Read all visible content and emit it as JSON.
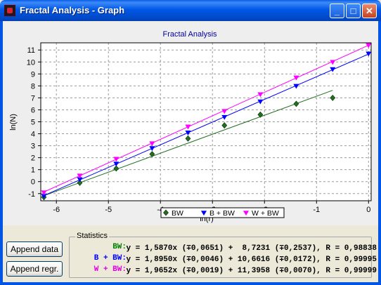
{
  "window": {
    "title": "Fractal Analysis - Graph",
    "minimize_glyph": "_",
    "maximize_glyph": "□",
    "close_glyph": "✕"
  },
  "buttons": {
    "append_data": "Append data",
    "append_regr": "Append regr."
  },
  "stats": {
    "legend": "Statistics",
    "rows": [
      {
        "label": "BW:",
        "text": "y = 1,5870x (∓0,0651) +  8,7231 (∓0,2537), R = 0,98838",
        "color": "#008000"
      },
      {
        "label": "B + BW:",
        "text": "y = 1,8950x (∓0,0046) + 10,6616 (∓0,0172), R = 0,99995",
        "color": "#0000FF"
      },
      {
        "label": "W + BW:",
        "text": "y = 1,9652x (∓0,0019) + 11,3958 (∓0,0070), R = 0,99999",
        "color": "#E000E0"
      }
    ]
  },
  "chart_data": {
    "type": "scatter",
    "title": "Fractal Analysis",
    "xlabel": "ln(r)",
    "ylabel": "ln(N)",
    "xlim": [
      -6.3,
      0.05
    ],
    "ylim": [
      -1.6,
      11.6
    ],
    "xticks": [
      -6,
      -5,
      -4,
      -3,
      -2,
      -1,
      0
    ],
    "yticks": [
      -1,
      0,
      1,
      2,
      3,
      4,
      5,
      6,
      7,
      8,
      9,
      10,
      11
    ],
    "grid": true,
    "legend_position": "bottom",
    "series": [
      {
        "name": "BW",
        "color": "#207020",
        "marker": "diamond",
        "x": [
          -6.24,
          -5.55,
          -4.85,
          -4.16,
          -3.47,
          -2.77,
          -2.08,
          -1.39,
          -0.69
        ],
        "y": [
          -1.3,
          -0.1,
          1.1,
          2.3,
          3.6,
          4.7,
          5.6,
          6.5,
          7.0
        ],
        "fit": {
          "slope": 1.587,
          "intercept": 8.7231,
          "x_range": [
            -6.24,
            -0.69
          ]
        }
      },
      {
        "name": "B + BW",
        "color": "#0000FF",
        "marker": "triangle-down",
        "x": [
          -6.24,
          -5.55,
          -4.85,
          -4.16,
          -3.47,
          -2.77,
          -2.08,
          -1.39,
          -0.69,
          0.0
        ],
        "y": [
          -1.2,
          0.2,
          1.5,
          2.8,
          4.1,
          5.4,
          6.7,
          8.0,
          9.4,
          10.7
        ],
        "fit": {
          "slope": 1.895,
          "intercept": 10.6616,
          "x_range": [
            -6.24,
            0.0
          ]
        }
      },
      {
        "name": "W + BW",
        "color": "#FF00FF",
        "marker": "triangle-down",
        "x": [
          -6.24,
          -5.55,
          -4.85,
          -4.16,
          -3.47,
          -2.77,
          -2.08,
          -1.39,
          -0.69,
          0.0
        ],
        "y": [
          -0.9,
          0.5,
          1.9,
          3.2,
          4.6,
          5.9,
          7.3,
          8.7,
          10.0,
          11.4
        ],
        "fit": {
          "slope": 1.9652,
          "intercept": 11.3958,
          "x_range": [
            -6.24,
            0.0
          ]
        }
      }
    ]
  }
}
